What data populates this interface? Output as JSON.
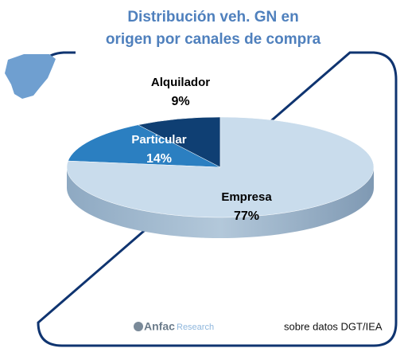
{
  "chart_data": {
    "type": "pie",
    "title": "Distribución veh. GN en origen por canales de compra",
    "categories": [
      "Alquilador",
      "Particular",
      "Empresa"
    ],
    "values": [
      9,
      14,
      77
    ],
    "value_labels": [
      "9%",
      "14%",
      "77%"
    ],
    "colors": [
      "#0f3f73",
      "#2b7fc1",
      "#c9dcec"
    ],
    "logo": {
      "name": "Anfac",
      "sub": "Research"
    },
    "source": "sobre datos DGT/IEA"
  }
}
